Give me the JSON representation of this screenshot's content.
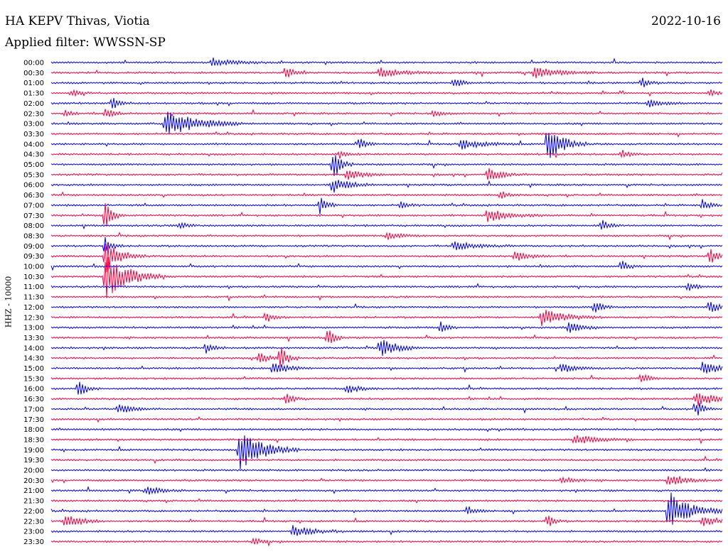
{
  "header": {
    "station": "HA KEPV Thivas, Viotia",
    "date": "2022-10-16",
    "filter": "Applied filter: WWSSN-SP"
  },
  "colors": {
    "odd": "#0000ff",
    "even": "#ff0040"
  },
  "chart_data": {
    "type": "line",
    "title": "HA KEPV Thivas, Viotia",
    "subtitle": "Applied filter: WWSSN-SP",
    "ylabel": "HHZ - 10000",
    "time_labels": [
      "00:00",
      "00:30",
      "01:00",
      "01:30",
      "02:00",
      "02:30",
      "03:00",
      "03:30",
      "04:00",
      "04:30",
      "05:00",
      "05:30",
      "06:00",
      "06:30",
      "07:00",
      "07:30",
      "08:00",
      "08:30",
      "09:00",
      "09:30",
      "10:00",
      "10:30",
      "11:00",
      "11:30",
      "12:00",
      "12:30",
      "13:00",
      "13:30",
      "14:00",
      "14:30",
      "15:00",
      "15:30",
      "16:00",
      "16:30",
      "17:00",
      "17:30",
      "18:00",
      "18:30",
      "19:00",
      "19:30",
      "20:00",
      "20:30",
      "21:00",
      "21:30",
      "22:00",
      "22:30",
      "23:00",
      "23:30"
    ],
    "events": [
      {
        "row": 0,
        "t": 0.24,
        "amp": 6,
        "dur": 0.03
      },
      {
        "row": 1,
        "t": 0.35,
        "amp": 9,
        "dur": 0.01
      },
      {
        "row": 1,
        "t": 0.49,
        "amp": 7,
        "dur": 0.03
      },
      {
        "row": 1,
        "t": 0.72,
        "amp": 8,
        "dur": 0.03
      },
      {
        "row": 2,
        "t": 0.6,
        "amp": 9,
        "dur": 0.01
      },
      {
        "row": 2,
        "t": 0.88,
        "amp": 7,
        "dur": 0.01
      },
      {
        "row": 3,
        "t": 0.03,
        "amp": 6,
        "dur": 0.01
      },
      {
        "row": 3,
        "t": 0.98,
        "amp": 5,
        "dur": 0.01
      },
      {
        "row": 4,
        "t": 0.09,
        "amp": 9,
        "dur": 0.01
      },
      {
        "row": 4,
        "t": 0.89,
        "amp": 5,
        "dur": 0.02
      },
      {
        "row": 5,
        "t": 0.02,
        "amp": 6,
        "dur": 0.01
      },
      {
        "row": 5,
        "t": 0.08,
        "amp": 9,
        "dur": 0.01
      },
      {
        "row": 5,
        "t": 0.57,
        "amp": 7,
        "dur": 0.01
      },
      {
        "row": 6,
        "t": 0.17,
        "amp": 20,
        "dur": 0.04
      },
      {
        "row": 8,
        "t": 0.46,
        "amp": 9,
        "dur": 0.01
      },
      {
        "row": 8,
        "t": 0.61,
        "amp": 7,
        "dur": 0.03
      },
      {
        "row": 8,
        "t": 0.74,
        "amp": 28,
        "dur": 0.02
      },
      {
        "row": 9,
        "t": 0.43,
        "amp": 6,
        "dur": 0.01
      },
      {
        "row": 9,
        "t": 0.85,
        "amp": 7,
        "dur": 0.01
      },
      {
        "row": 10,
        "t": 0.42,
        "amp": 30,
        "dur": 0.01
      },
      {
        "row": 11,
        "t": 0.44,
        "amp": 9,
        "dur": 0.02
      },
      {
        "row": 11,
        "t": 0.65,
        "amp": 9,
        "dur": 0.02
      },
      {
        "row": 12,
        "t": 0.42,
        "amp": 12,
        "dur": 0.02
      },
      {
        "row": 13,
        "t": 0.67,
        "amp": 6,
        "dur": 0.01
      },
      {
        "row": 14,
        "t": 0.4,
        "amp": 14,
        "dur": 0.01
      },
      {
        "row": 14,
        "t": 0.52,
        "amp": 6,
        "dur": 0.01
      },
      {
        "row": 14,
        "t": 0.97,
        "amp": 8,
        "dur": 0.01
      },
      {
        "row": 15,
        "t": 0.08,
        "amp": 20,
        "dur": 0.01
      },
      {
        "row": 15,
        "t": 0.65,
        "amp": 10,
        "dur": 0.03
      },
      {
        "row": 16,
        "t": 0.19,
        "amp": 6,
        "dur": 0.01
      },
      {
        "row": 16,
        "t": 0.82,
        "amp": 9,
        "dur": 0.01
      },
      {
        "row": 17,
        "t": 0.5,
        "amp": 5,
        "dur": 0.02
      },
      {
        "row": 18,
        "t": 0.08,
        "amp": 12,
        "dur": 0.01
      },
      {
        "row": 18,
        "t": 0.6,
        "amp": 6,
        "dur": 0.03
      },
      {
        "row": 19,
        "t": 0.08,
        "amp": 25,
        "dur": 0.02
      },
      {
        "row": 19,
        "t": 0.69,
        "amp": 8,
        "dur": 0.02
      },
      {
        "row": 19,
        "t": 0.98,
        "amp": 14,
        "dur": 0.01
      },
      {
        "row": 20,
        "t": 0.85,
        "amp": 8,
        "dur": 0.01
      },
      {
        "row": 21,
        "t": 0.08,
        "amp": 35,
        "dur": 0.03
      },
      {
        "row": 22,
        "t": 0.95,
        "amp": 6,
        "dur": 0.01
      },
      {
        "row": 24,
        "t": 0.81,
        "amp": 9,
        "dur": 0.01
      },
      {
        "row": 24,
        "t": 0.98,
        "amp": 9,
        "dur": 0.02
      },
      {
        "row": 25,
        "t": 0.32,
        "amp": 8,
        "dur": 0.01
      },
      {
        "row": 25,
        "t": 0.73,
        "amp": 12,
        "dur": 0.03
      },
      {
        "row": 26,
        "t": 0.58,
        "amp": 8,
        "dur": 0.01
      },
      {
        "row": 26,
        "t": 0.77,
        "amp": 8,
        "dur": 0.02
      },
      {
        "row": 27,
        "t": 0.41,
        "amp": 14,
        "dur": 0.01
      },
      {
        "row": 28,
        "t": 0.23,
        "amp": 9,
        "dur": 0.01
      },
      {
        "row": 28,
        "t": 0.49,
        "amp": 16,
        "dur": 0.02
      },
      {
        "row": 29,
        "t": 0.31,
        "amp": 10,
        "dur": 0.01
      },
      {
        "row": 29,
        "t": 0.34,
        "amp": 20,
        "dur": 0.01
      },
      {
        "row": 30,
        "t": 0.33,
        "amp": 10,
        "dur": 0.02
      },
      {
        "row": 30,
        "t": 0.76,
        "amp": 7,
        "dur": 0.02
      },
      {
        "row": 30,
        "t": 0.97,
        "amp": 8,
        "dur": 0.03
      },
      {
        "row": 31,
        "t": 0.88,
        "amp": 8,
        "dur": 0.01
      },
      {
        "row": 32,
        "t": 0.04,
        "amp": 15,
        "dur": 0.01
      },
      {
        "row": 32,
        "t": 0.44,
        "amp": 6,
        "dur": 0.02
      },
      {
        "row": 33,
        "t": 0.35,
        "amp": 10,
        "dur": 0.01
      },
      {
        "row": 33,
        "t": 0.96,
        "amp": 12,
        "dur": 0.03
      },
      {
        "row": 34,
        "t": 0.1,
        "amp": 6,
        "dur": 0.02
      },
      {
        "row": 34,
        "t": 0.96,
        "amp": 14,
        "dur": 0.01
      },
      {
        "row": 37,
        "t": 0.78,
        "amp": 7,
        "dur": 0.03
      },
      {
        "row": 38,
        "t": 0.28,
        "amp": 32,
        "dur": 0.03
      },
      {
        "row": 41,
        "t": 0.76,
        "amp": 5,
        "dur": 0.02
      },
      {
        "row": 41,
        "t": 0.92,
        "amp": 9,
        "dur": 0.02
      },
      {
        "row": 42,
        "t": 0.14,
        "amp": 6,
        "dur": 0.02
      },
      {
        "row": 44,
        "t": 0.62,
        "amp": 7,
        "dur": 0.01
      },
      {
        "row": 44,
        "t": 0.92,
        "amp": 28,
        "dur": 0.03
      },
      {
        "row": 45,
        "t": 0.02,
        "amp": 12,
        "dur": 0.02
      },
      {
        "row": 45,
        "t": 0.74,
        "amp": 10,
        "dur": 0.01
      },
      {
        "row": 45,
        "t": 0.97,
        "amp": 7,
        "dur": 0.02
      },
      {
        "row": 46,
        "t": 0.36,
        "amp": 8,
        "dur": 0.03
      },
      {
        "row": 47,
        "t": 0.3,
        "amp": 6,
        "dur": 0.01
      }
    ]
  }
}
